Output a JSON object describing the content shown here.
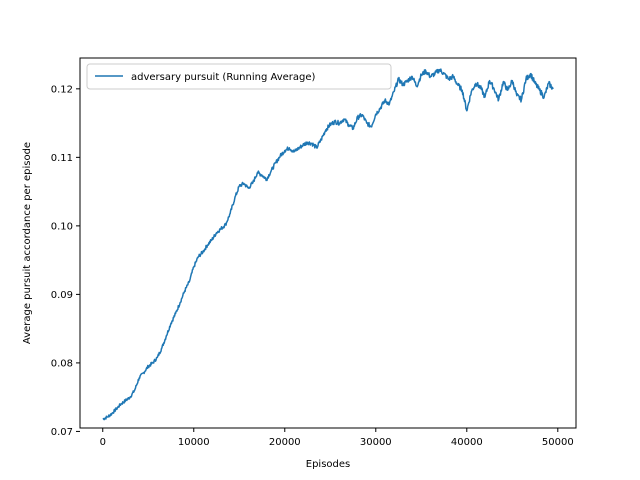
{
  "chart_data": {
    "type": "line",
    "xlabel": "Episodes",
    "ylabel": "Average pursuit accordance per episode",
    "xlim": [
      -2500,
      52000
    ],
    "ylim": [
      0.0705,
      0.1245
    ],
    "xticks": [
      0,
      10000,
      20000,
      30000,
      40000,
      50000
    ],
    "yticks": [
      0.07,
      0.08,
      0.09,
      0.1,
      0.11,
      0.12
    ],
    "xtick_labels": [
      "0",
      "10000",
      "20000",
      "30000",
      "40000",
      "50000"
    ],
    "ytick_labels": [
      "0.07",
      "0.08",
      "0.09",
      "0.10",
      "0.11",
      "0.12"
    ],
    "grid": false,
    "legend_position": "upper-left",
    "series": [
      {
        "name": "adversary pursuit (Running Average)",
        "color": "#1f77b4",
        "x": [
          0,
          500,
          1000,
          1500,
          2000,
          2500,
          3000,
          3500,
          4000,
          4500,
          5000,
          5500,
          6000,
          6500,
          7000,
          7500,
          8000,
          8500,
          9000,
          9500,
          10000,
          10500,
          11000,
          11500,
          12000,
          12500,
          13000,
          13500,
          14000,
          14500,
          15000,
          15500,
          16000,
          16500,
          17000,
          17500,
          18000,
          18500,
          19000,
          19500,
          20000,
          20500,
          21000,
          21500,
          22000,
          22500,
          23000,
          23500,
          24000,
          24500,
          25000,
          25500,
          26000,
          26500,
          27000,
          27500,
          28000,
          28500,
          29000,
          29500,
          30000,
          30500,
          31000,
          31500,
          32000,
          32500,
          33000,
          33500,
          34000,
          34500,
          35000,
          35500,
          36000,
          36500,
          37000,
          37500,
          38000,
          38500,
          39000,
          39500,
          40000,
          40500,
          41000,
          41500,
          42000,
          42500,
          43000,
          43500,
          44000,
          44500,
          45000,
          45500,
          46000,
          46500,
          47000,
          47500,
          48000,
          48500,
          49000,
          49500
        ],
        "y": [
          0.0718,
          0.0721,
          0.0726,
          0.0733,
          0.074,
          0.0745,
          0.075,
          0.076,
          0.0778,
          0.0786,
          0.0795,
          0.08,
          0.0808,
          0.0822,
          0.084,
          0.0858,
          0.0872,
          0.0888,
          0.0905,
          0.0918,
          0.094,
          0.0955,
          0.0962,
          0.0972,
          0.098,
          0.099,
          0.0996,
          0.1002,
          0.1018,
          0.104,
          0.1058,
          0.1062,
          0.1055,
          0.1063,
          0.1078,
          0.1074,
          0.1068,
          0.108,
          0.1092,
          0.1102,
          0.111,
          0.1114,
          0.1108,
          0.1113,
          0.1118,
          0.1122,
          0.112,
          0.1114,
          0.1126,
          0.114,
          0.1148,
          0.1152,
          0.115,
          0.1156,
          0.1148,
          0.1142,
          0.1158,
          0.1162,
          0.115,
          0.1145,
          0.1163,
          0.1172,
          0.1183,
          0.1178,
          0.1196,
          0.1214,
          0.1206,
          0.1212,
          0.1218,
          0.1204,
          0.122,
          0.1226,
          0.1218,
          0.1222,
          0.1228,
          0.1222,
          0.1214,
          0.1218,
          0.1206,
          0.1198,
          0.1168,
          0.1196,
          0.1208,
          0.1202,
          0.1188,
          0.1212,
          0.12,
          0.1184,
          0.121,
          0.1198,
          0.1212,
          0.119,
          0.1184,
          0.1214,
          0.1222,
          0.1208,
          0.1198,
          0.1188,
          0.1208,
          0.12
        ]
      }
    ]
  }
}
